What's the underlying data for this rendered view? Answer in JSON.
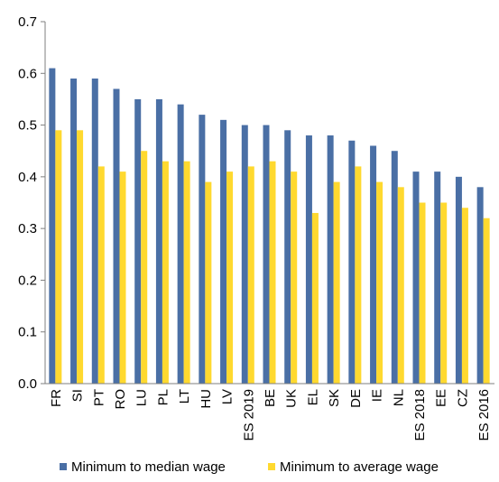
{
  "chart_data": {
    "type": "bar",
    "title": "",
    "xlabel": "",
    "ylabel": "",
    "ylim": [
      0,
      0.7
    ],
    "yticks": [
      "0.0",
      "0.1",
      "0.2",
      "0.3",
      "0.4",
      "0.5",
      "0.6",
      "0.7"
    ],
    "grid": false,
    "legend_position": "bottom",
    "categories": [
      "FR",
      "SI",
      "PT",
      "RO",
      "LU",
      "PL",
      "LT",
      "HU",
      "LV",
      "ES 2019",
      "BE",
      "UK",
      "EL",
      "SK",
      "DE",
      "IE",
      "NL",
      "ES 2018",
      "EE",
      "CZ",
      "ES 2016"
    ],
    "series": [
      {
        "name": "Minimum to median wage",
        "color": "#4A6FA5",
        "values": [
          0.61,
          0.59,
          0.59,
          0.57,
          0.55,
          0.55,
          0.54,
          0.52,
          0.51,
          0.5,
          0.5,
          0.49,
          0.48,
          0.48,
          0.47,
          0.46,
          0.45,
          0.41,
          0.41,
          0.4,
          0.38
        ]
      },
      {
        "name": "Minimum to average wage",
        "color": "#FFD92F",
        "values": [
          0.49,
          0.49,
          0.42,
          0.41,
          0.45,
          0.43,
          0.43,
          0.39,
          0.41,
          0.42,
          0.43,
          0.41,
          0.33,
          0.39,
          0.42,
          0.39,
          0.38,
          0.35,
          0.35,
          0.34,
          0.32
        ]
      }
    ]
  }
}
